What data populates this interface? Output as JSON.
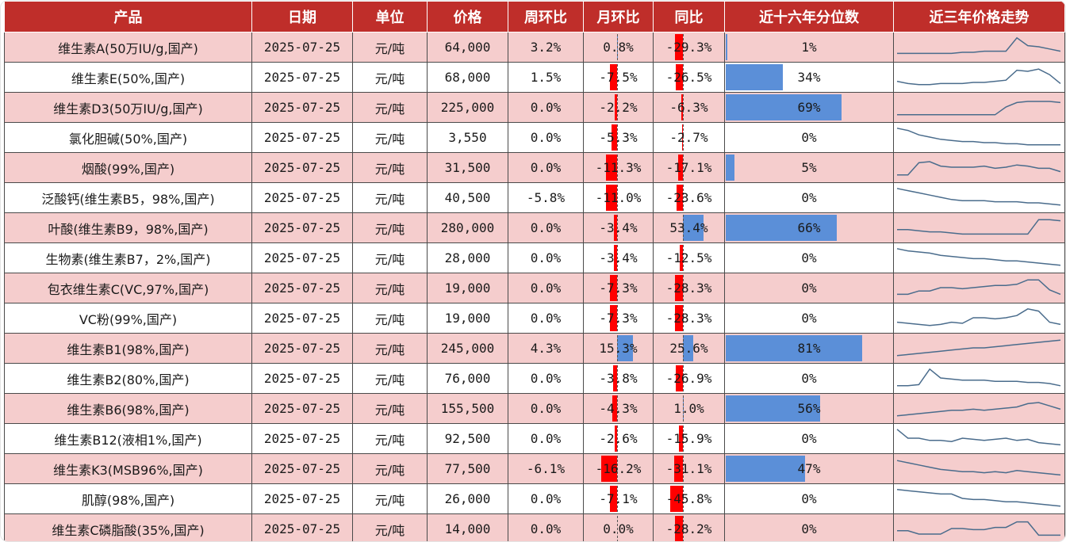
{
  "headers": [
    "产品",
    "日期",
    "单位",
    "价格",
    "周环比",
    "月环比",
    "同比",
    "近十六年分位数",
    "近三年价格走势"
  ],
  "rows": [
    {
      "name": "维生素A(50万IU/g,国产)",
      "date": "2025-07-25",
      "unit": "元/吨",
      "price": "64,000",
      "wow": "3.2%",
      "mom": "0.8%",
      "mom_v": 0.8,
      "yoy": "-29.3%",
      "yoy_v": -29.3,
      "pct": "1%",
      "pct_v": 1,
      "trend": [
        0.2,
        0.2,
        0.2,
        0.2,
        0.2,
        0.2,
        0.25,
        0.25,
        0.3,
        0.3,
        0.3,
        0.9,
        0.55,
        0.5,
        0.4,
        0.3
      ]
    },
    {
      "name": "维生素E(50%,国产)",
      "date": "2025-07-25",
      "unit": "元/吨",
      "price": "68,000",
      "wow": "1.5%",
      "mom": "-7.5%",
      "mom_v": -7.5,
      "yoy": "-26.5%",
      "yoy_v": -26.5,
      "pct": "34%",
      "pct_v": 34,
      "trend": [
        0.3,
        0.2,
        0.15,
        0.15,
        0.2,
        0.2,
        0.2,
        0.25,
        0.25,
        0.3,
        0.35,
        0.8,
        0.75,
        0.85,
        0.6,
        0.2
      ]
    },
    {
      "name": "维生素D3(50万IU/g,国产)",
      "date": "2025-07-25",
      "unit": "元/吨",
      "price": "225,000",
      "wow": "0.0%",
      "mom": "-2.2%",
      "mom_v": -2.2,
      "yoy": "-6.3%",
      "yoy_v": -6.3,
      "pct": "69%",
      "pct_v": 69,
      "trend": [
        0.15,
        0.15,
        0.15,
        0.15,
        0.15,
        0.15,
        0.15,
        0.15,
        0.15,
        0.15,
        0.5,
        0.7,
        0.75,
        0.75,
        0.75,
        0.7
      ]
    },
    {
      "name": "氯化胆碱(50%,国产)",
      "date": "2025-07-25",
      "unit": "元/吨",
      "price": "3,550",
      "wow": "0.0%",
      "mom": "-5.3%",
      "mom_v": -5.3,
      "yoy": "-2.7%",
      "yoy_v": -2.7,
      "pct": "0%",
      "pct_v": 0,
      "trend": [
        0.9,
        0.8,
        0.6,
        0.5,
        0.4,
        0.35,
        0.3,
        0.3,
        0.25,
        0.25,
        0.2,
        0.2,
        0.15,
        0.15,
        0.15,
        0.15
      ]
    },
    {
      "name": "烟酸(99%,国产)",
      "date": "2025-07-25",
      "unit": "元/吨",
      "price": "31,500",
      "wow": "0.0%",
      "mom": "-11.3%",
      "mom_v": -11.3,
      "yoy": "-17.1%",
      "yoy_v": -17.1,
      "pct": "5%",
      "pct_v": 5,
      "trend": [
        0.15,
        0.15,
        0.7,
        0.75,
        0.55,
        0.5,
        0.5,
        0.5,
        0.55,
        0.45,
        0.5,
        0.6,
        0.55,
        0.45,
        0.45,
        0.3
      ]
    },
    {
      "name": "泛酸钙(维生素B5，98%,国产)",
      "date": "2025-07-25",
      "unit": "元/吨",
      "price": "40,500",
      "wow": "-5.8%",
      "mom": "-11.0%",
      "mom_v": -11.0,
      "yoy": "-23.6%",
      "yoy_v": -23.6,
      "pct": "0%",
      "pct_v": 0,
      "trend": [
        0.9,
        0.8,
        0.7,
        0.6,
        0.5,
        0.4,
        0.35,
        0.35,
        0.35,
        0.3,
        0.3,
        0.3,
        0.25,
        0.25,
        0.2,
        0.15
      ]
    },
    {
      "name": "叶酸(维生素B9，98%,国产)",
      "date": "2025-07-25",
      "unit": "元/吨",
      "price": "280,000",
      "wow": "0.0%",
      "mom": "-3.4%",
      "mom_v": -3.4,
      "yoy": "53.4%",
      "yoy_v": 53.4,
      "pct": "66%",
      "pct_v": 66,
      "trend": [
        0.4,
        0.4,
        0.35,
        0.3,
        0.3,
        0.25,
        0.2,
        0.2,
        0.2,
        0.2,
        0.2,
        0.2,
        0.2,
        0.85,
        0.85,
        0.8
      ]
    },
    {
      "name": "生物素(维生素B7，2%,国产)",
      "date": "2025-07-25",
      "unit": "元/吨",
      "price": "28,000",
      "wow": "0.0%",
      "mom": "-3.4%",
      "mom_v": -3.4,
      "yoy": "-12.5%",
      "yoy_v": -12.5,
      "pct": "0%",
      "pct_v": 0,
      "trend": [
        0.9,
        0.8,
        0.75,
        0.7,
        0.6,
        0.55,
        0.5,
        0.45,
        0.45,
        0.4,
        0.35,
        0.35,
        0.3,
        0.25,
        0.2,
        0.15
      ]
    },
    {
      "name": "包衣维生素C(VC,97%,国产)",
      "date": "2025-07-25",
      "unit": "元/吨",
      "price": "19,000",
      "wow": "0.0%",
      "mom": "-7.3%",
      "mom_v": -7.3,
      "yoy": "-28.3%",
      "yoy_v": -28.3,
      "pct": "0%",
      "pct_v": 0,
      "trend": [
        0.2,
        0.2,
        0.35,
        0.35,
        0.5,
        0.5,
        0.45,
        0.5,
        0.55,
        0.6,
        0.6,
        0.65,
        0.85,
        0.85,
        0.4,
        0.2
      ]
    },
    {
      "name": "VC粉(99%,国产)",
      "date": "2025-07-25",
      "unit": "元/吨",
      "price": "19,000",
      "wow": "0.0%",
      "mom": "-7.3%",
      "mom_v": -7.3,
      "yoy": "-28.3%",
      "yoy_v": -28.3,
      "pct": "0%",
      "pct_v": 0,
      "trend": [
        0.3,
        0.25,
        0.2,
        0.15,
        0.2,
        0.3,
        0.25,
        0.5,
        0.5,
        0.45,
        0.5,
        0.6,
        0.9,
        0.8,
        0.3,
        0.2
      ]
    },
    {
      "name": "维生素B1(98%,国产)",
      "date": "2025-07-25",
      "unit": "元/吨",
      "price": "245,000",
      "wow": "4.3%",
      "mom": "15.3%",
      "mom_v": 15.3,
      "yoy": "25.6%",
      "yoy_v": 25.6,
      "pct": "81%",
      "pct_v": 81,
      "trend": [
        0.15,
        0.2,
        0.25,
        0.3,
        0.35,
        0.4,
        0.45,
        0.5,
        0.5,
        0.55,
        0.6,
        0.65,
        0.7,
        0.75,
        0.8,
        0.85
      ]
    },
    {
      "name": "维生素B2(80%,国产)",
      "date": "2025-07-25",
      "unit": "元/吨",
      "price": "76,000",
      "wow": "0.0%",
      "mom": "-3.8%",
      "mom_v": -3.8,
      "yoy": "-26.9%",
      "yoy_v": -26.9,
      "pct": "0%",
      "pct_v": 0,
      "trend": [
        0.15,
        0.15,
        0.2,
        0.9,
        0.5,
        0.45,
        0.4,
        0.4,
        0.4,
        0.35,
        0.35,
        0.35,
        0.3,
        0.3,
        0.25,
        0.15
      ]
    },
    {
      "name": "维生素B6(98%,国产)",
      "date": "2025-07-25",
      "unit": "元/吨",
      "price": "155,500",
      "wow": "0.0%",
      "mom": "-4.3%",
      "mom_v": -4.3,
      "yoy": "1.0%",
      "yoy_v": 1.0,
      "pct": "56%",
      "pct_v": 56,
      "trend": [
        0.15,
        0.2,
        0.25,
        0.3,
        0.35,
        0.4,
        0.4,
        0.45,
        0.4,
        0.45,
        0.5,
        0.55,
        0.7,
        0.75,
        0.6,
        0.45
      ]
    },
    {
      "name": "维生素B12(液相1%,国产)",
      "date": "2025-07-25",
      "unit": "元/吨",
      "price": "92,500",
      "wow": "0.0%",
      "mom": "-2.6%",
      "mom_v": -2.6,
      "yoy": "-15.9%",
      "yoy_v": -15.9,
      "pct": "0%",
      "pct_v": 0,
      "trend": [
        0.9,
        0.5,
        0.5,
        0.4,
        0.4,
        0.35,
        0.5,
        0.45,
        0.4,
        0.45,
        0.5,
        0.4,
        0.45,
        0.3,
        0.25,
        0.2
      ]
    },
    {
      "name": "维生素K3(MSB96%,国产)",
      "date": "2025-07-25",
      "unit": "元/吨",
      "price": "77,500",
      "wow": "-6.1%",
      "mom": "-16.2%",
      "mom_v": -16.2,
      "yoy": "-31.1%",
      "yoy_v": -31.1,
      "pct": "47%",
      "pct_v": 47,
      "trend": [
        0.85,
        0.75,
        0.65,
        0.55,
        0.45,
        0.4,
        0.35,
        0.35,
        0.3,
        0.35,
        0.3,
        0.4,
        0.35,
        0.3,
        0.25,
        0.2
      ]
    },
    {
      "name": "肌醇(98%,国产)",
      "date": "2025-07-25",
      "unit": "元/吨",
      "price": "26,000",
      "wow": "0.0%",
      "mom": "-7.1%",
      "mom_v": -7.1,
      "yoy": "-45.8%",
      "yoy_v": -45.8,
      "pct": "0%",
      "pct_v": 0,
      "trend": [
        0.9,
        0.85,
        0.8,
        0.75,
        0.7,
        0.7,
        0.5,
        0.45,
        0.45,
        0.4,
        0.35,
        0.35,
        0.3,
        0.25,
        0.2,
        0.15
      ]
    },
    {
      "name": "维生素C磷脂酸(35%,国产)",
      "date": "2025-07-25",
      "unit": "元/吨",
      "price": "14,000",
      "wow": "0.0%",
      "mom": "0.0%",
      "mom_v": 0.0,
      "yoy": "-28.2%",
      "yoy_v": -28.2,
      "pct": "0%",
      "pct_v": 0,
      "trend": [
        0.4,
        0.4,
        0.25,
        0.25,
        0.25,
        0.5,
        0.5,
        0.45,
        0.45,
        0.55,
        0.55,
        0.8,
        0.8,
        0.2,
        0.2,
        0.2
      ]
    }
  ],
  "colors": {
    "header_bg": "#bf2e2a",
    "odd_row": "#f5cdcd",
    "neg_bar": "#ff0000",
    "pos_bar": "#5b8fd8",
    "spark": "#4a6c8c"
  }
}
